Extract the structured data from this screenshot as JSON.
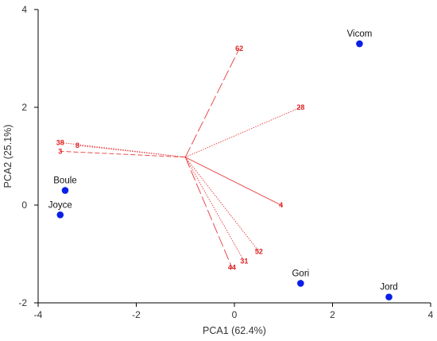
{
  "chart_data": {
    "type": "scatter",
    "title": "",
    "xlabel": "PCA1 (62.4%)",
    "ylabel": "PCA2 (25.1%)",
    "xlim": [
      -4,
      4
    ],
    "ylim": [
      -2,
      4
    ],
    "x_ticks": [
      "-4",
      "-2",
      "0",
      "2",
      "4"
    ],
    "y_ticks": [
      "-2",
      "0",
      "2",
      "4"
    ],
    "points": [
      {
        "label": "Vicom",
        "x": 2.55,
        "y": 3.3
      },
      {
        "label": "Boule",
        "x": -3.45,
        "y": 0.3
      },
      {
        "label": "Joyce",
        "x": -3.55,
        "y": -0.2
      },
      {
        "label": "Gori",
        "x": 1.35,
        "y": -1.6
      },
      {
        "label": "Jord",
        "x": 3.15,
        "y": -1.88
      }
    ],
    "vectors_origin": [
      -1.0,
      0.98
    ],
    "vectors": [
      {
        "label": "62",
        "x": 0.1,
        "y": 3.2,
        "style": "longdash"
      },
      {
        "label": "28",
        "x": 1.35,
        "y": 2.0,
        "style": "dotted"
      },
      {
        "label": "38",
        "x": -3.55,
        "y": 1.28,
        "style": "dotted"
      },
      {
        "label": "8",
        "x": -3.2,
        "y": 1.22,
        "style": "dotted"
      },
      {
        "label": "3",
        "x": -3.55,
        "y": 1.1,
        "style": "dashed"
      },
      {
        "label": "4",
        "x": 0.95,
        "y": 0.0,
        "style": "solid"
      },
      {
        "label": "52",
        "x": 0.5,
        "y": -0.95,
        "style": "dotted"
      },
      {
        "label": "31",
        "x": 0.2,
        "y": -1.15,
        "style": "dotted"
      },
      {
        "label": "44",
        "x": -0.05,
        "y": -1.28,
        "style": "longdash"
      }
    ]
  }
}
